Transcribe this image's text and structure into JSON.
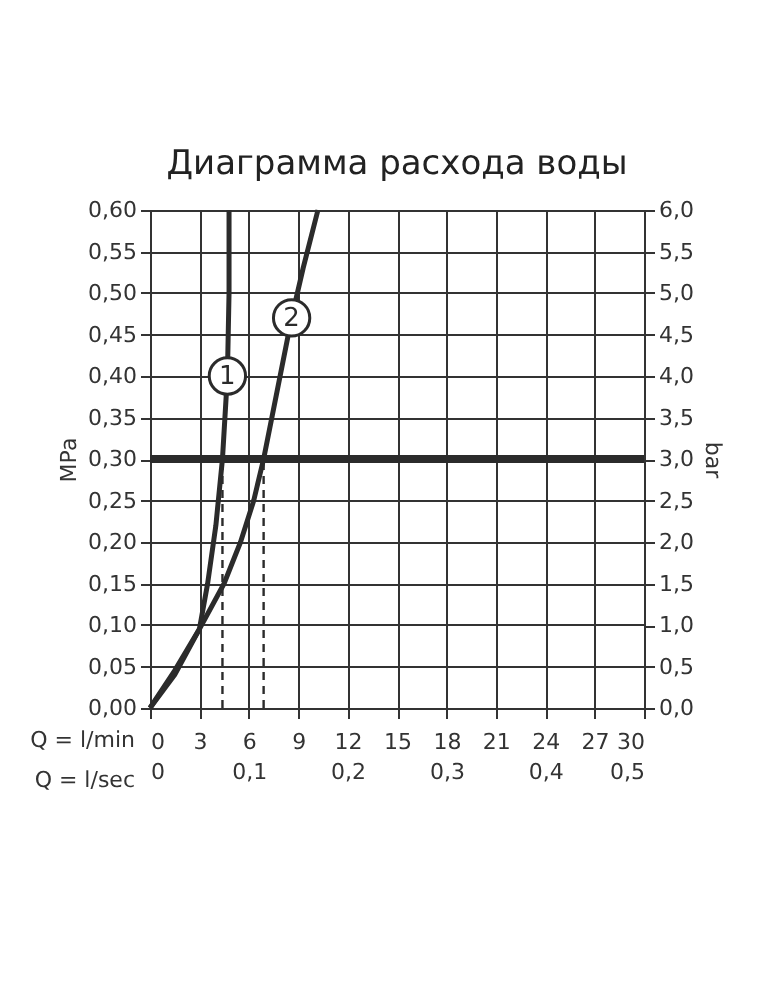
{
  "chart_data": {
    "type": "line",
    "title": "Диаграмма расхода воды",
    "xlabel": "Q = l/min",
    "x2label": "Q = l/sec",
    "ylabel": "MPa",
    "y2label": "bar",
    "xlim": [
      0,
      30
    ],
    "xticks": [
      0,
      3,
      6,
      9,
      12,
      15,
      18,
      21,
      24,
      27,
      30
    ],
    "x2lim": [
      0,
      0.5
    ],
    "x2ticks": [
      {
        "value": 0,
        "label": "0"
      },
      {
        "value": 0.1,
        "label": "0,1"
      },
      {
        "value": 0.2,
        "label": "0,2"
      },
      {
        "value": 0.3,
        "label": "0,3"
      },
      {
        "value": 0.4,
        "label": "0,4"
      },
      {
        "value": 0.5,
        "label": "0,5"
      }
    ],
    "ylim": [
      0,
      0.6
    ],
    "yticks": [
      {
        "value": 0,
        "label": "0,00"
      },
      {
        "value": 0.05,
        "label": "0,05"
      },
      {
        "value": 0.1,
        "label": "0,10"
      },
      {
        "value": 0.15,
        "label": "0,15"
      },
      {
        "value": 0.2,
        "label": "0,20"
      },
      {
        "value": 0.25,
        "label": "0,25"
      },
      {
        "value": 0.3,
        "label": "0,30"
      },
      {
        "value": 0.35,
        "label": "0,35"
      },
      {
        "value": 0.4,
        "label": "0,40"
      },
      {
        "value": 0.45,
        "label": "0,45"
      },
      {
        "value": 0.5,
        "label": "0,50"
      },
      {
        "value": 0.55,
        "label": "0,55"
      },
      {
        "value": 0.6,
        "label": "0,60"
      }
    ],
    "y2lim": [
      0,
      6
    ],
    "y2ticks": [
      {
        "value": 0,
        "label": "0,0"
      },
      {
        "value": 0.5,
        "label": "0,5"
      },
      {
        "value": 1,
        "label": "1,0"
      },
      {
        "value": 1.5,
        "label": "1,5"
      },
      {
        "value": 2,
        "label": "2,0"
      },
      {
        "value": 2.5,
        "label": "2,5"
      },
      {
        "value": 3,
        "label": "3,0"
      },
      {
        "value": 3.5,
        "label": "3,5"
      },
      {
        "value": 4,
        "label": "4,0"
      },
      {
        "value": 4.5,
        "label": "4,5"
      },
      {
        "value": 5,
        "label": "5,0"
      },
      {
        "value": 5.5,
        "label": "5,5"
      },
      {
        "value": 6,
        "label": "6,0"
      }
    ],
    "grid": true,
    "marker": "none",
    "series": [
      {
        "name": "1",
        "color": "#2b2b2b",
        "line_style": "solid",
        "x": [
          0,
          1.5,
          3,
          3.5,
          4,
          4.4,
          4.7,
          4.8,
          4.8
        ],
        "values": [
          0,
          0.04,
          0.095,
          0.15,
          0.22,
          0.3,
          0.4,
          0.5,
          0.6
        ]
      },
      {
        "name": "2",
        "color": "#2b2b2b",
        "line_style": "solid",
        "x": [
          0,
          1.5,
          3,
          4.5,
          5.5,
          6.3,
          6.9,
          7.6,
          8.6,
          9.3,
          10.2
        ],
        "values": [
          0,
          0.045,
          0.095,
          0.15,
          0.2,
          0.25,
          0.3,
          0.37,
          0.47,
          0.53,
          0.6
        ]
      },
      {
        "color": "#2b2b2b",
        "line_style": "dashed",
        "x": [
          4.4,
          4.4
        ],
        "values": [
          0,
          0.3
        ]
      },
      {
        "color": "#2b2b2b",
        "line_style": "dashed",
        "x": [
          6.9,
          6.9
        ],
        "values": [
          0,
          0.3
        ]
      }
    ],
    "ref_lines": [
      {
        "axis": "y",
        "value": 0.3,
        "color": "#2b2b2b"
      }
    ]
  }
}
